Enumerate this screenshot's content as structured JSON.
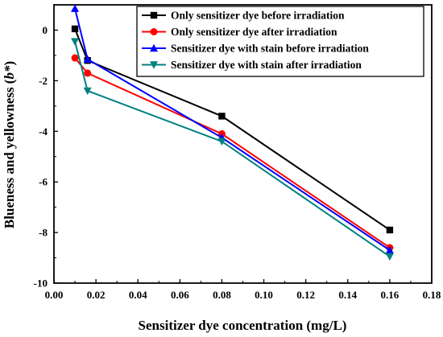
{
  "chart_data": {
    "type": "line",
    "xlabel": "Sensitizer dye concentration (mg/L)",
    "ylabel_parts": [
      "Blueness and yellowness (",
      "b*",
      ")"
    ],
    "x": [
      0.01,
      0.016,
      0.08,
      0.16
    ],
    "xlim": [
      0.0,
      0.18
    ],
    "ylim": [
      -10,
      1
    ],
    "xticks": [
      "0.00",
      "0.02",
      "0.04",
      "0.06",
      "0.08",
      "0.10",
      "0.12",
      "0.14",
      "0.16",
      "0.18"
    ],
    "xtick_values": [
      0.0,
      0.02,
      0.04,
      0.06,
      0.08,
      0.1,
      0.12,
      0.14,
      0.16,
      0.18
    ],
    "yticks": [
      "0",
      "-2",
      "-4",
      "-6",
      "-8",
      "-10"
    ],
    "ytick_values": [
      0,
      -2,
      -4,
      -6,
      -8,
      -10
    ],
    "grid": false,
    "legend_position": "top-right",
    "series": [
      {
        "name": "Only sensitizer dye before irradiation",
        "color": "#000000",
        "marker": "square",
        "values": [
          0.05,
          -1.2,
          -3.4,
          -7.9
        ]
      },
      {
        "name": "Only sensitizer dye after irradiation",
        "color": "#ff0000",
        "marker": "circle",
        "values": [
          -1.1,
          -1.7,
          -4.1,
          -8.6
        ]
      },
      {
        "name": "Sensitizer dye with stain before irradiation",
        "color": "#0000ff",
        "marker": "triangle-up",
        "values": [
          0.85,
          -1.15,
          -4.25,
          -8.7
        ]
      },
      {
        "name": "Sensitizer dye with stain after irradiation",
        "color": "#008080",
        "marker": "triangle-down",
        "values": [
          -0.45,
          -2.4,
          -4.4,
          -8.95
        ]
      }
    ]
  }
}
